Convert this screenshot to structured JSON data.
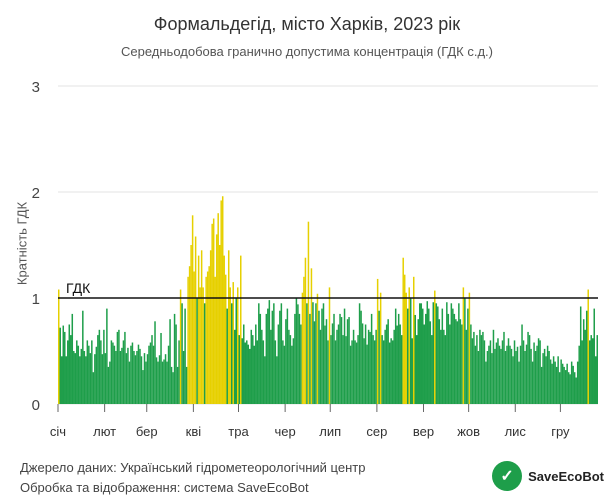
{
  "chart_data": {
    "type": "bar",
    "title": "Формальдегід, місто Харків, 2023 рік",
    "subtitle": "Середньодобова гранично допустима концентрація (ГДК с.д.)",
    "ylabel": "Кратність ГДК",
    "ylim": [
      0,
      3
    ],
    "yticks": [
      "0",
      "1",
      "2",
      "3"
    ],
    "x_ticks": [
      "січ",
      "лют",
      "бер",
      "кві",
      "тра",
      "чер",
      "лип",
      "сер",
      "вер",
      "жов",
      "лис",
      "гру"
    ],
    "threshold": {
      "value": 1,
      "label": "ГДК"
    },
    "colors": {
      "below": "#1e9e4a",
      "above": "#e6d000"
    },
    "grid": true,
    "series": [
      {
        "values": [
          1.08,
          0.72,
          0.45,
          0.74,
          0.68,
          0.45,
          0.6,
          0.75,
          0.65,
          0.85,
          0.5,
          0.48,
          0.6,
          0.55,
          0.45,
          0.52,
          0.88,
          0.5,
          0.45,
          0.6,
          0.55,
          0.48,
          0.6,
          0.3,
          0.47,
          0.54,
          0.65,
          0.7,
          0.6,
          0.47,
          0.7,
          0.48,
          0.9,
          0.35,
          0.4,
          0.6,
          0.58,
          0.55,
          0.5,
          0.68,
          0.7,
          0.5,
          0.53,
          0.6,
          0.68,
          0.48,
          0.53,
          0.4,
          0.55,
          0.58,
          0.5,
          0.46,
          0.5,
          0.56,
          0.52,
          0.45,
          0.32,
          0.48,
          0.4,
          0.47,
          0.55,
          0.58,
          0.65,
          0.55,
          0.78,
          0.44,
          0.4,
          0.46,
          0.67,
          0.4,
          0.42,
          0.47,
          0.4,
          0.55,
          0.8,
          0.35,
          0.3,
          0.85,
          0.75,
          0.35,
          0.6,
          1.08,
          0.95,
          0.5,
          0.9,
          0.35,
          1.2,
          1.3,
          1.5,
          1.78,
          1.25,
          1.58,
          1.0,
          1.4,
          1.1,
          1.45,
          1.1,
          0.95,
          1.2,
          1.25,
          1.3,
          1.45,
          1.7,
          1.75,
          1.2,
          1.6,
          1.8,
          1.5,
          1.92,
          1.96,
          1.4,
          1.22,
          0.9,
          1.45,
          1.1,
          0.95,
          1.15,
          0.7,
          1.0,
          1.1,
          0.65,
          1.4,
          0.62,
          0.75,
          0.58,
          0.6,
          0.56,
          0.52,
          0.7,
          0.65,
          0.55,
          0.75,
          0.6,
          0.95,
          0.85,
          0.7,
          0.6,
          0.45,
          0.85,
          0.9,
          0.98,
          0.7,
          0.88,
          0.95,
          0.6,
          0.45,
          0.75,
          0.88,
          0.95,
          0.6,
          0.55,
          0.8,
          0.9,
          0.7,
          0.65,
          0.55,
          0.62,
          0.85,
          1.0,
          0.94,
          0.85,
          0.75,
          1.05,
          1.2,
          1.38,
          0.95,
          1.72,
          0.85,
          1.28,
          0.96,
          0.78,
          0.95,
          1.04,
          0.88,
          0.7,
          0.9,
          0.95,
          0.74,
          0.8,
          0.6,
          1.1,
          0.65,
          0.76,
          0.85,
          0.6,
          0.7,
          0.75,
          0.85,
          0.82,
          0.65,
          0.9,
          0.64,
          0.8,
          0.82,
          0.55,
          0.6,
          0.7,
          0.6,
          0.58,
          0.65,
          0.95,
          0.88,
          0.76,
          0.62,
          0.75,
          0.56,
          0.7,
          0.68,
          0.85,
          0.65,
          0.6,
          0.7,
          1.18,
          0.88,
          1.05,
          0.65,
          0.6,
          0.7,
          0.75,
          0.8,
          0.58,
          0.62,
          0.6,
          0.7,
          0.9,
          0.74,
          0.85,
          0.75,
          0.65,
          1.38,
          1.22,
          1.05,
          0.9,
          1.1,
          1.0,
          0.62,
          1.2,
          0.84,
          0.65,
          0.8,
          0.95,
          0.95,
          0.9,
          0.75,
          0.85,
          0.97,
          0.9,
          0.78,
          0.65,
          0.96,
          1.07,
          0.95,
          0.92,
          0.8,
          0.7,
          0.9,
          0.7,
          0.65,
          0.96,
          0.85,
          0.75,
          0.95,
          0.9,
          0.85,
          0.8,
          0.78,
          0.95,
          0.8,
          0.75,
          1.1,
          1.0,
          0.7,
          0.9,
          1.05,
          0.75,
          0.62,
          0.68,
          0.55,
          0.65,
          0.5,
          0.7,
          0.65,
          0.68,
          0.6,
          0.4,
          0.5,
          0.55,
          0.6,
          0.48,
          0.7,
          0.52,
          0.58,
          0.62,
          0.55,
          0.52,
          0.6,
          0.68,
          0.5,
          0.55,
          0.62,
          0.55,
          0.52,
          0.45,
          0.6,
          0.5,
          0.54,
          0.4,
          0.55,
          0.75,
          0.6,
          0.5,
          0.56,
          0.68,
          0.65,
          0.52,
          0.4,
          0.58,
          0.5,
          0.55,
          0.62,
          0.6,
          0.35,
          0.48,
          0.52,
          0.45,
          0.55,
          0.5,
          0.42,
          0.38,
          0.45,
          0.4,
          0.35,
          0.45,
          0.3,
          0.42,
          0.38,
          0.35,
          0.32,
          0.38,
          0.3,
          0.28,
          0.4,
          0.36,
          0.3,
          0.25,
          0.4,
          0.55,
          0.92,
          0.6,
          0.8,
          0.7,
          0.88,
          1.08,
          0.6,
          0.65,
          0.62,
          0.9,
          0.45,
          0.65
        ]
      }
    ]
  },
  "footer": {
    "source_line1": "Джерело даних: Український гідрометеорологічний центр",
    "source_line2": "Обробка та відображення: система SaveEcoBot",
    "logo_text": "SaveEcoBot"
  }
}
